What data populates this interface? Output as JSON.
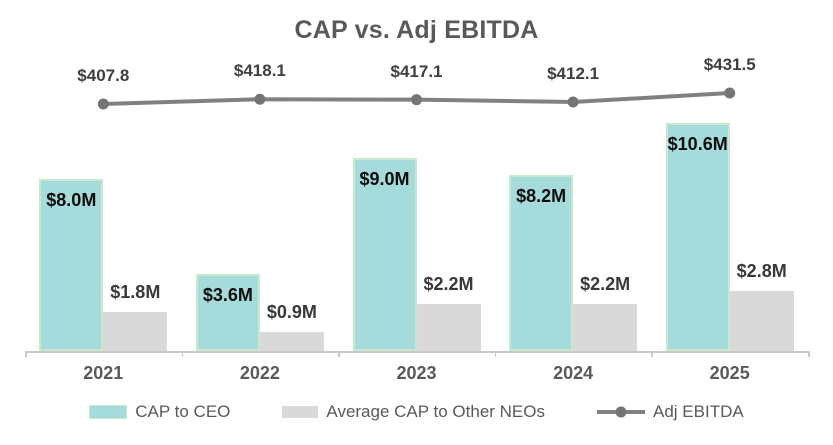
{
  "title": "CAP vs. Adj EBITDA",
  "colors": {
    "ceo_bar_fill": "#a6dbdc",
    "ceo_bar_border": "#c9e9cf",
    "neo_bar_fill": "#d9d9d9",
    "line_stroke": "#808080",
    "line_marker": "#757575",
    "axis": "#c9c9c9",
    "title_text": "#595959",
    "category_text": "#595959",
    "legend_text": "#595959"
  },
  "chart_data": {
    "type": "bar",
    "subtype": "combo-bar-line",
    "title": "CAP vs. Adj EBITDA",
    "categories": [
      "2021",
      "2022",
      "2023",
      "2024",
      "2025"
    ],
    "series": [
      {
        "name": "CAP to CEO",
        "type": "bar",
        "values": [
          8.0,
          3.6,
          9.0,
          8.2,
          10.6
        ],
        "labels": [
          "$8.0M",
          "$3.6M",
          "$9.0M",
          "$8.2M",
          "$10.6M"
        ],
        "unit": "$M"
      },
      {
        "name": "Average CAP to Other NEOs",
        "type": "bar",
        "values": [
          1.8,
          0.9,
          2.2,
          2.2,
          2.8
        ],
        "labels": [
          "$1.8M",
          "$0.9M",
          "$2.2M",
          "$2.2M",
          "$2.8M"
        ],
        "unit": "$M"
      },
      {
        "name": "Adj EBITDA",
        "type": "line",
        "values": [
          407.8,
          418.1,
          417.1,
          412.1,
          431.5
        ],
        "labels": [
          "$407.8",
          "$418.1",
          "$417.1",
          "$412.1",
          "$431.5"
        ]
      }
    ],
    "legend": [
      "CAP to CEO",
      "Average CAP to Other NEOs",
      "Adj EBITDA"
    ],
    "legend_position": "bottom",
    "grid": false,
    "value_labels": true,
    "x_axis_visible": true,
    "y_axis_visible": false
  }
}
